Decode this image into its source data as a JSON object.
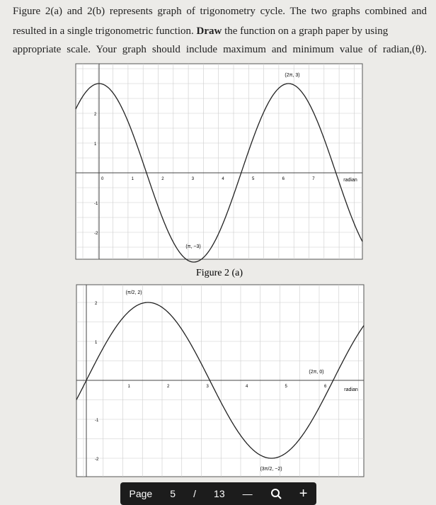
{
  "question": {
    "lines": [
      "Figure 2(a) and 2(b) represents graph of trigonometry cycle. The two graphs combined and",
      "resulted in a single trigonometric function.",
      "Draw",
      "the function on a graph paper by using",
      "appropriate scale. Your graph should include maximum and minimum value of radian,(θ)."
    ]
  },
  "figure_a": {
    "caption": "Figure 2 (a)",
    "x_labels": [
      "0",
      "1",
      "2",
      "3",
      "4",
      "5",
      "6",
      "7"
    ],
    "y_labels": [
      "2",
      "1",
      "-1",
      "-2"
    ],
    "annotations": [
      "(2π, 3)",
      "(π, −3)",
      "radian"
    ]
  },
  "figure_b": {
    "x_labels": [
      "1",
      "2",
      "3",
      "4",
      "5",
      "6"
    ],
    "y_labels": [
      "2",
      "1",
      "-1",
      "-2"
    ],
    "annotations": [
      "(π/2, 2)",
      "(2π, 0)",
      "(3π/2, −2)",
      "radian"
    ]
  },
  "toolbar": {
    "page_label": "Page",
    "page": "5",
    "separator": "/",
    "total": "13",
    "minus": "—",
    "plus": "+"
  }
}
